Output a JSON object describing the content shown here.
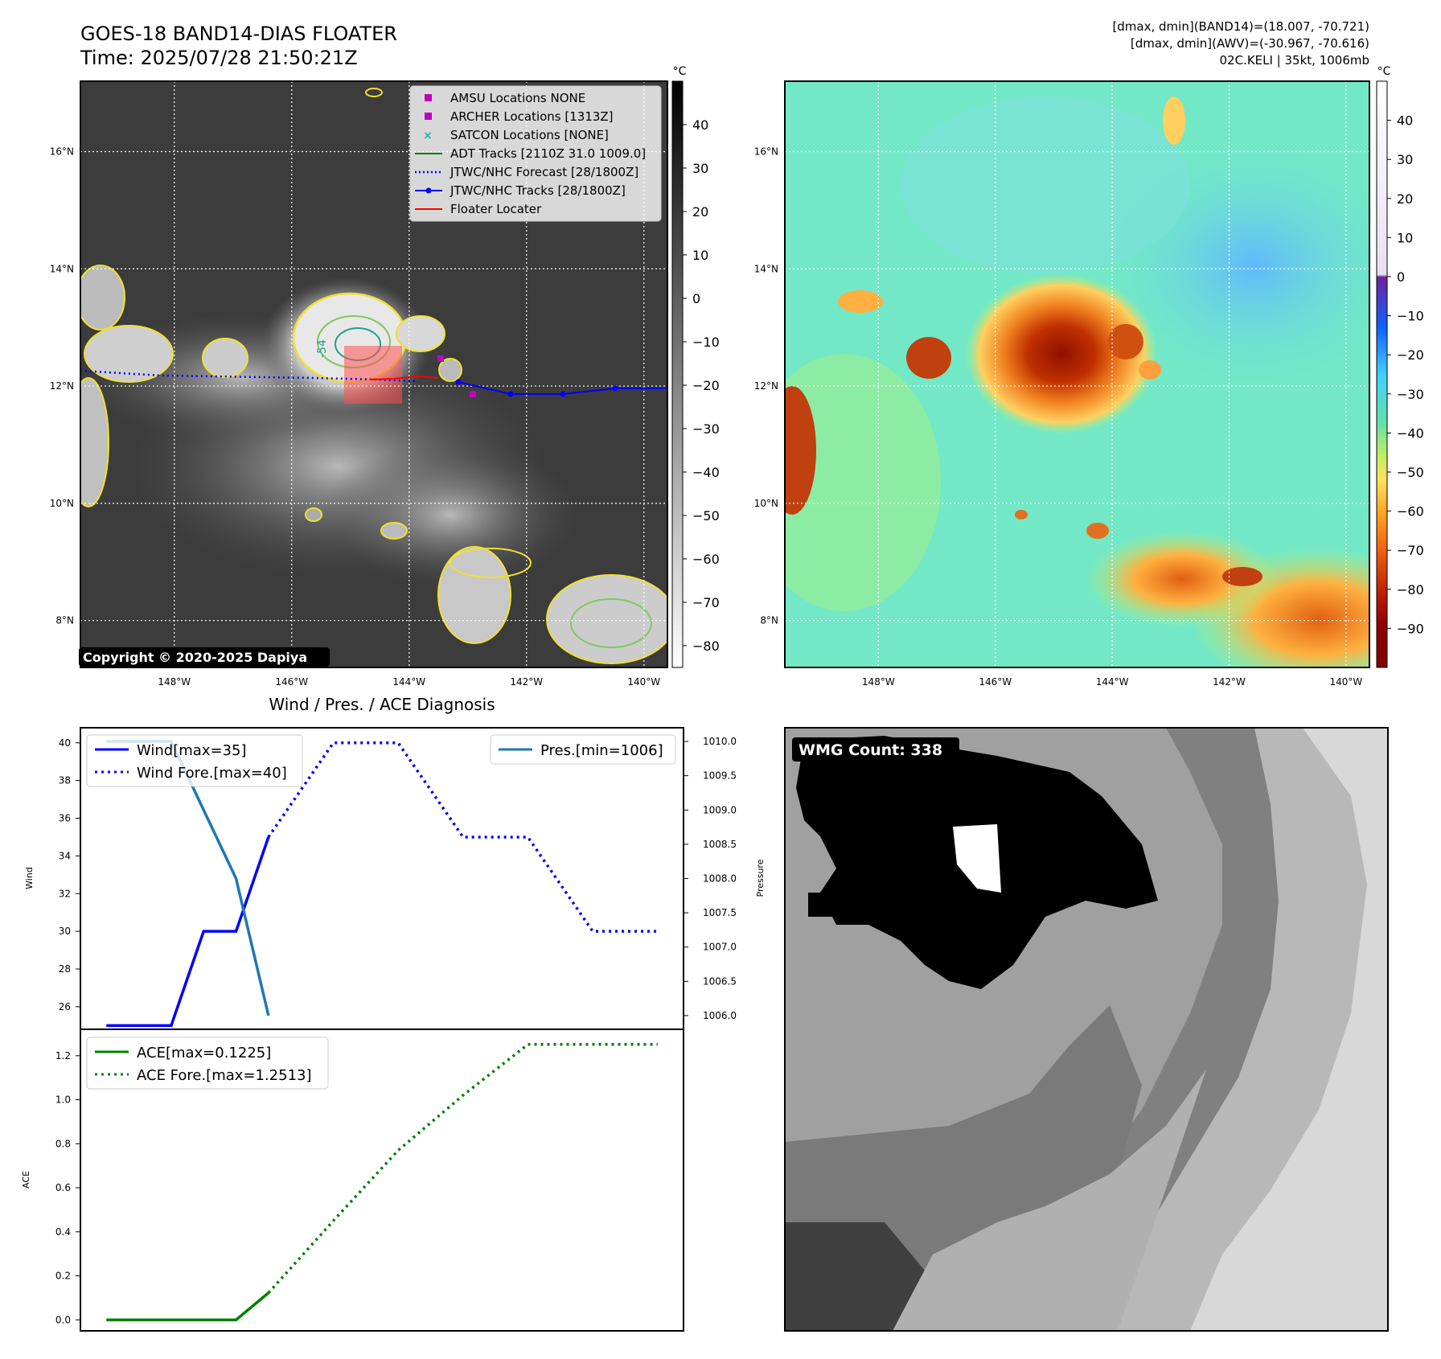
{
  "header": {
    "title_line1": "GOES-18 BAND14-DIAS FLOATER",
    "title_line2": "Time: 2025/07/28 21:50:21Z",
    "info_line1": "[dmax, dmin](BAND14)=(18.007, -70.721)",
    "info_line2": "[dmax, dmin](AWV)=(-30.967, -70.616)",
    "info_line3": "02C.KELI | 35kt, 1006mb"
  },
  "map_axes": {
    "lat_labels": [
      "16°N",
      "14°N",
      "12°N",
      "10°N",
      "8°N"
    ],
    "lat_values": [
      16,
      14,
      12,
      10,
      8
    ],
    "lon_labels": [
      "148°W",
      "146°W",
      "144°W",
      "142°W",
      "140°W"
    ],
    "lon_values": [
      -148,
      -146,
      -144,
      -142,
      -140
    ],
    "lon_range": [
      -149.6,
      -139.6
    ],
    "lat_range": [
      7.2,
      17.2
    ]
  },
  "ir_panel": {
    "contour_label": "-54",
    "copyright": "Copyright © 2020-2025 Dapiya",
    "colorbar": {
      "unit": "°C",
      "ticks": [
        "40",
        "30",
        "20",
        "10",
        "0",
        "−10",
        "−20",
        "−30",
        "−40",
        "−50",
        "−60",
        "−70",
        "−80"
      ],
      "range": [
        -85,
        50
      ]
    },
    "legend": [
      {
        "label": "AMSU Locations NONE",
        "marker": "square",
        "color": "#c000c0"
      },
      {
        "label": "ARCHER Locations [1313Z]",
        "marker": "square",
        "color": "#c000c0"
      },
      {
        "label": "SATCON Locations [NONE]",
        "marker": "x",
        "color": "#20b0b0"
      },
      {
        "label": "ADT Tracks [2110Z 31.0 1009.0]",
        "marker": "line",
        "color": "#008000"
      },
      {
        "label": "JTWC/NHC Forecast [28/1800Z]",
        "marker": "dotted",
        "color": "#0000ff"
      },
      {
        "label": "JTWC/NHC Tracks [28/1800Z]",
        "marker": "line-dot",
        "color": "#0000ff"
      },
      {
        "label": "Floater Locater",
        "marker": "line",
        "color": "#ff0000"
      }
    ]
  },
  "color_panel": {
    "colorbar": {
      "unit": "°C",
      "ticks": [
        "40",
        "30",
        "20",
        "10",
        "0",
        "−10",
        "−20",
        "−30",
        "−40",
        "−50",
        "−60",
        "−70",
        "−80",
        "−90"
      ],
      "range": [
        -100,
        50
      ]
    }
  },
  "wmg_panel": {
    "label": "WMG Count: 338"
  },
  "colors": {
    "wind": "#0000ff",
    "pressure": "#1f77b4",
    "ace": "#008000",
    "ir_background": "#3a3a3a",
    "awv_background": "#70e8c8"
  },
  "chart_data": [
    {
      "type": "line",
      "title": "Wind / Pres. / ACE Diagnosis",
      "ylabel": "Wind",
      "y2label": "Pressure",
      "x": [
        0,
        1,
        2,
        3,
        4,
        5,
        6,
        7,
        8,
        9,
        10,
        11,
        12,
        13,
        14,
        15,
        16,
        17
      ],
      "xlim": [
        -0.8,
        17.8
      ],
      "ylim": [
        24.8,
        40.8
      ],
      "y2lim": [
        1005.8,
        1010.2
      ],
      "yticks": [
        "40",
        "38",
        "36",
        "34",
        "32",
        "30",
        "28",
        "26"
      ],
      "y2ticks": [
        "1010.0",
        "1009.5",
        "1009.0",
        "1008.5",
        "1008.0",
        "1007.5",
        "1007.0",
        "1006.5",
        "1006.0"
      ],
      "series": [
        {
          "name": "Wind[max=35]",
          "axis": "left",
          "style": "solid",
          "x": [
            0,
            2,
            3,
            4,
            5
          ],
          "values": [
            25,
            25,
            30,
            30,
            35
          ]
        },
        {
          "name": "Wind Fore.[max=40]",
          "axis": "left",
          "style": "dotted",
          "x": [
            5,
            7,
            9,
            11,
            13,
            15,
            17
          ],
          "values": [
            35,
            40,
            40,
            35,
            35,
            30,
            30
          ]
        },
        {
          "name": "Pres.[min=1006]",
          "axis": "right",
          "style": "solid",
          "x": [
            0,
            2,
            4,
            5
          ],
          "values": [
            1010.0,
            1010.0,
            1008.0,
            1006.0
          ]
        }
      ]
    },
    {
      "type": "line",
      "ylabel": "ACE",
      "x": [
        0,
        1,
        2,
        3,
        4,
        5,
        6,
        7,
        8,
        9,
        10,
        11,
        12,
        13,
        14,
        15,
        16,
        17
      ],
      "xlim": [
        -0.8,
        17.8
      ],
      "ylim": [
        -0.05,
        1.32
      ],
      "yticks": [
        "1.2",
        "1.0",
        "0.8",
        "0.6",
        "0.4",
        "0.2",
        "0.0"
      ],
      "series": [
        {
          "name": "ACE[max=0.1225]",
          "style": "solid",
          "x": [
            0,
            2,
            4,
            5
          ],
          "values": [
            0,
            0,
            0,
            0.1225
          ]
        },
        {
          "name": "ACE Fore.[max=1.2513]",
          "style": "dotted",
          "x": [
            5,
            7,
            9,
            11,
            13,
            15,
            17
          ],
          "values": [
            0.1225,
            0.45,
            0.77,
            1.02,
            1.2513,
            1.2513,
            1.2513
          ]
        }
      ]
    }
  ]
}
